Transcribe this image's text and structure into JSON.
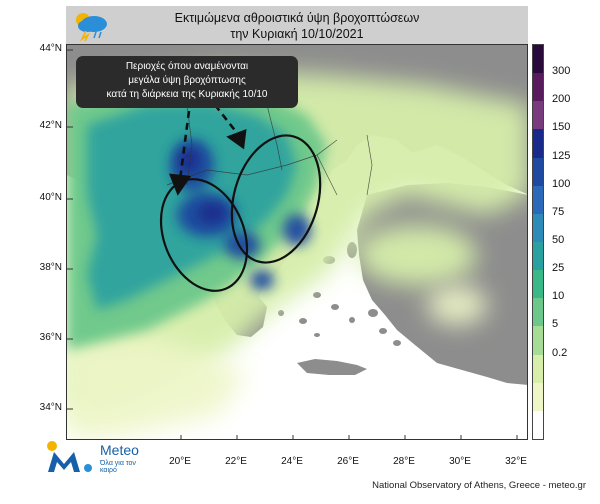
{
  "title": {
    "line1": "Εκτιμώμενα αθροιστικά ύψη βροχοπτώσεων",
    "line2": "την Κυριακή 10/10/2021"
  },
  "annotation": {
    "line1": "Περιοχές όπου αναμένονται",
    "line2": "μεγάλα ύψη βροχόπτωσης",
    "line3": "κατά τη διάρκεια της Κυριακής 10/10"
  },
  "latitude_labels": [
    "44°N",
    "42°N",
    "40°N",
    "38°N",
    "36°N",
    "34°N"
  ],
  "longitude_labels": [
    "20°E",
    "22°E",
    "24°E",
    "26°E",
    "28°E",
    "30°E",
    "32°E"
  ],
  "colorbar": {
    "labels": [
      "300",
      "200",
      "150",
      "125",
      "100",
      "75",
      "50",
      "25",
      "10",
      "5",
      "0.2"
    ],
    "colors": [
      "#2a0a3a",
      "#5a1a5e",
      "#7a3a7e",
      "#1a2a8a",
      "#1e4aa0",
      "#2a6ab8",
      "#2e8ab8",
      "#2aa0a0",
      "#3ab888",
      "#6cc88a",
      "#a6dc96",
      "#d6eeaa",
      "#eef6c8",
      "#ffffff"
    ]
  },
  "logo": {
    "name": "Meteo",
    "tagline": "Όλα για τον καιρό"
  },
  "credit": "National Observatory of Athens, Greece - meteo.gr",
  "colors": {
    "land": "#8d8d8d",
    "sea": "#ffffff",
    "rain_light": "#d6eeaa",
    "rain_moderate": "#6cc88a",
    "rain_heavy": "#1e4aa0",
    "title_bar": "#cfcfcf",
    "annotation_box": "#2b2b2b"
  }
}
